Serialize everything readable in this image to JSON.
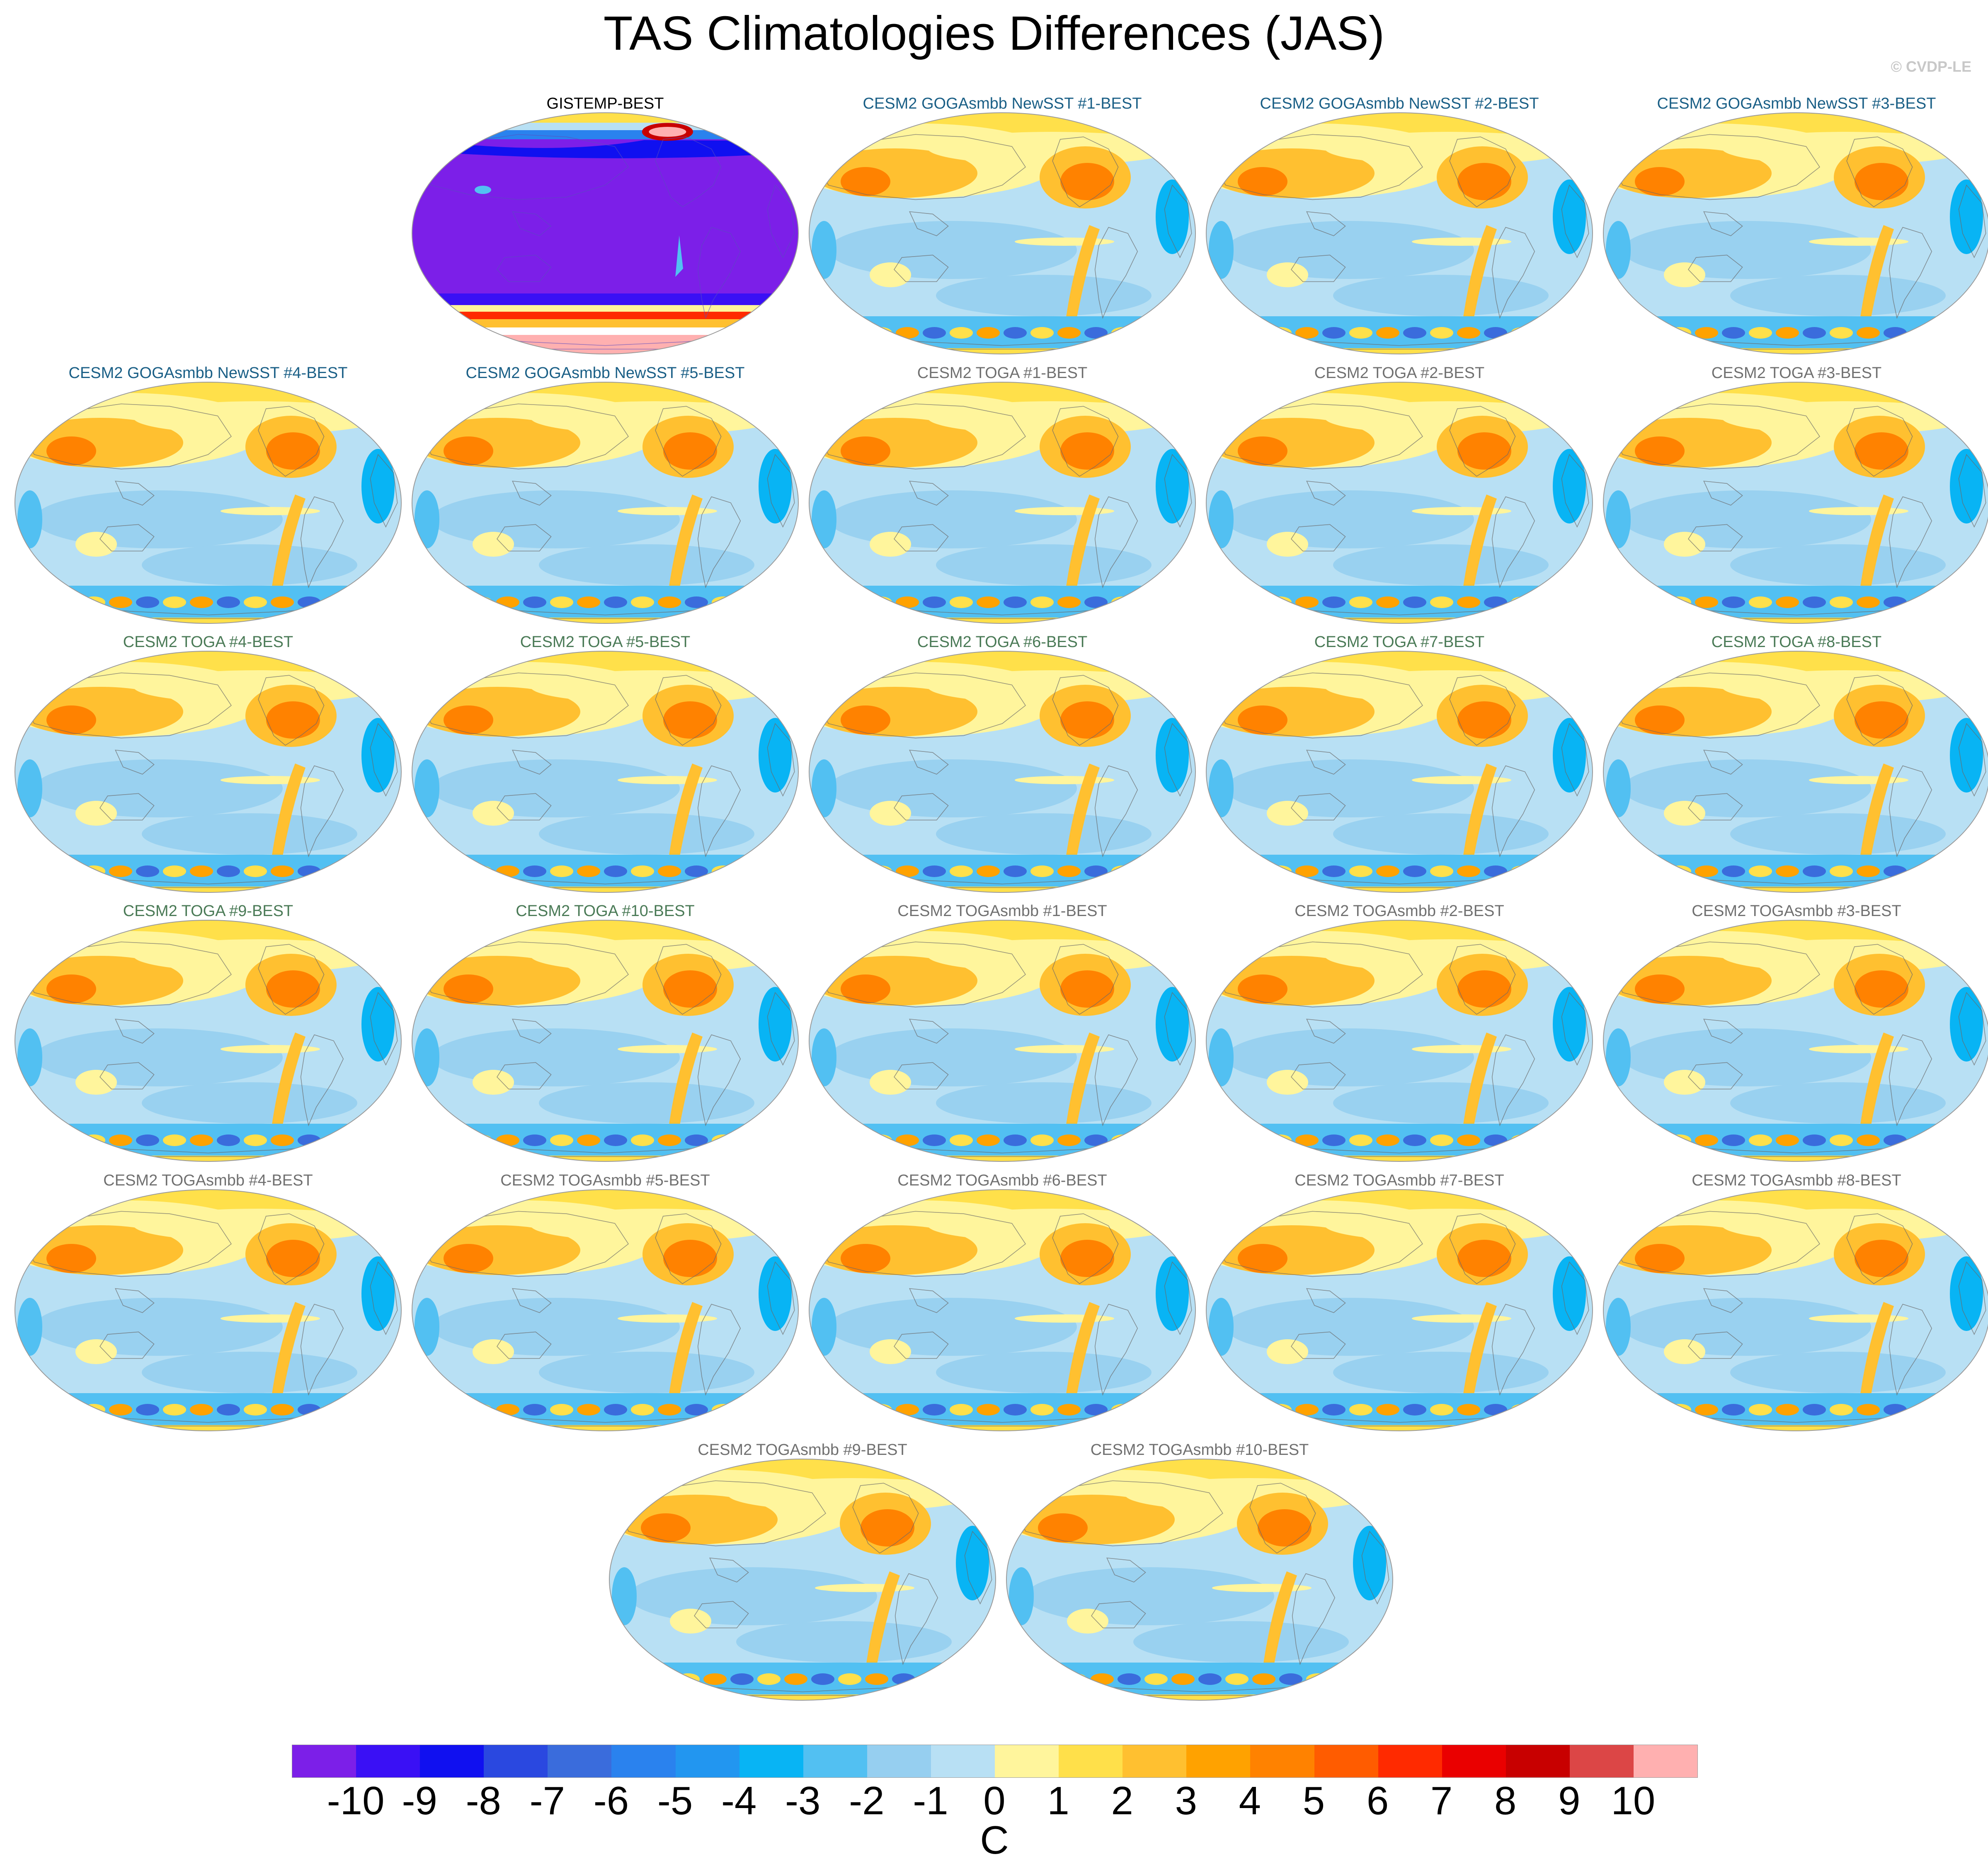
{
  "title": "TAS Climatologies Differences (JAS)",
  "credit": "© CVDP-LE",
  "colors": {
    "goga_title": "#1a5f86",
    "toga_title": "#4a7a56",
    "togasmbb_title": "#707070",
    "obs_title": "#000000",
    "coast": "#6a6a6a",
    "map_border": "#9a9a9a"
  },
  "panels": [
    {
      "title": "GISTEMP-BEST",
      "style": "obs"
    },
    {
      "title": "CESM2 GOGAsmbb NewSST #1-BEST",
      "style": "goga"
    },
    {
      "title": "CESM2 GOGAsmbb NewSST #2-BEST",
      "style": "goga"
    },
    {
      "title": "CESM2 GOGAsmbb NewSST #3-BEST",
      "style": "goga"
    },
    {
      "title": "CESM2 GOGAsmbb NewSST #4-BEST",
      "style": "goga"
    },
    {
      "title": "CESM2 GOGAsmbb NewSST #5-BEST",
      "style": "goga"
    },
    {
      "title": "CESM2 TOGA #1-BEST",
      "style": "togasmbb"
    },
    {
      "title": "CESM2 TOGA #2-BEST",
      "style": "togasmbb"
    },
    {
      "title": "CESM2 TOGA #3-BEST",
      "style": "togasmbb"
    },
    {
      "title": "CESM2 TOGA #4-BEST",
      "style": "toga"
    },
    {
      "title": "CESM2 TOGA #5-BEST",
      "style": "toga"
    },
    {
      "title": "CESM2 TOGA #6-BEST",
      "style": "toga"
    },
    {
      "title": "CESM2 TOGA #7-BEST",
      "style": "toga"
    },
    {
      "title": "CESM2 TOGA #8-BEST",
      "style": "toga"
    },
    {
      "title": "CESM2 TOGA #9-BEST",
      "style": "toga"
    },
    {
      "title": "CESM2 TOGA #10-BEST",
      "style": "toga"
    },
    {
      "title": "CESM2 TOGAsmbb #1-BEST",
      "style": "togasmbb"
    },
    {
      "title": "CESM2 TOGAsmbb #2-BEST",
      "style": "togasmbb"
    },
    {
      "title": "CESM2 TOGAsmbb #3-BEST",
      "style": "togasmbb"
    },
    {
      "title": "CESM2 TOGAsmbb #4-BEST",
      "style": "togasmbb"
    },
    {
      "title": "CESM2 TOGAsmbb #5-BEST",
      "style": "togasmbb"
    },
    {
      "title": "CESM2 TOGAsmbb #6-BEST",
      "style": "togasmbb"
    },
    {
      "title": "CESM2 TOGAsmbb #7-BEST",
      "style": "togasmbb"
    },
    {
      "title": "CESM2 TOGAsmbb #8-BEST",
      "style": "togasmbb"
    },
    {
      "title": "CESM2 TOGAsmbb #9-BEST",
      "style": "togasmbb"
    },
    {
      "title": "CESM2 TOGAsmbb #10-BEST",
      "style": "togasmbb"
    }
  ],
  "colorbar": {
    "labels": [
      "-10",
      "-9",
      "-8",
      "-7",
      "-6",
      "-5",
      "-4",
      "-3",
      "-2",
      "-1",
      "0",
      "1",
      "2",
      "3",
      "4",
      "5",
      "6",
      "7",
      "8",
      "9",
      "10"
    ],
    "colors": [
      "#7c1fe8",
      "#3a10f5",
      "#1010f0",
      "#2a48e0",
      "#3a6cdc",
      "#2a82ee",
      "#2296f0",
      "#08b4f4",
      "#52c0f2",
      "#96cff0",
      "#b8e0f4",
      "#fff59c",
      "#ffe04a",
      "#ffc030",
      "#ffa200",
      "#ff8200",
      "#ff5c00",
      "#ff2a00",
      "#ea0000",
      "#c80000",
      "#dc4646",
      "#ffb0b0"
    ],
    "units": "C"
  }
}
